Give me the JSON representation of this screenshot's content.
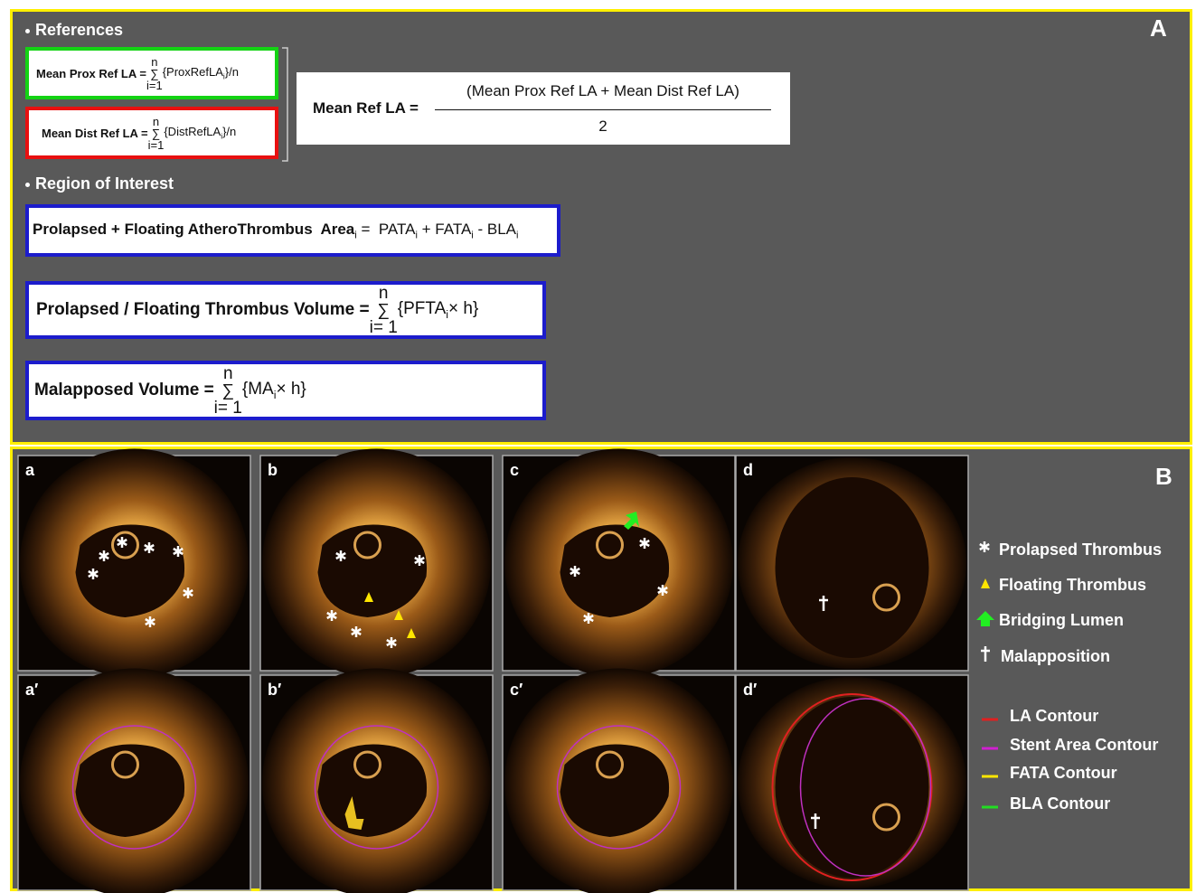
{
  "panel_a": {
    "label": "A",
    "references": {
      "heading": "References",
      "prox": {
        "lhs": "Mean Prox Ref LA =",
        "upper": "n",
        "sigma": "∑",
        "lower": "i=1",
        "body": [
          {
            "text": "{ProxRefLA",
            "sub": "i"
          },
          {
            "text": "}/n"
          }
        ]
      },
      "dist": {
        "lhs": "Mean Dist Ref LA =",
        "upper": "n",
        "sigma": "∑",
        "lower": "i=1",
        "body": [
          {
            "text": "{DistRefLA",
            "sub": "i"
          },
          {
            "text": "}/n"
          }
        ]
      },
      "mean": {
        "lhs": "Mean Ref LA =",
        "numerator": "(Mean Prox Ref LA + Mean Dist Ref LA)",
        "denominator": "2"
      }
    },
    "roi": {
      "heading": "Region of Interest",
      "area": [
        {
          "text": "Prolapsed + Floating AtheroThrombus  Area",
          "sub": "i"
        },
        {
          "text": " =  PATA",
          "sub": "i"
        },
        {
          "text": " + FATA",
          "sub": "i"
        },
        {
          "text": " - BLA",
          "sub": "i"
        }
      ],
      "volume": {
        "lhs": "Prolapsed / Floating Thrombus Volume =",
        "upper": "n",
        "sigma": "∑",
        "lower": "i= 1",
        "body": [
          {
            "text": "{PFTA",
            "sub": "i"
          },
          {
            "text": "× h}"
          }
        ]
      },
      "malapposed": {
        "lhs": "Malapposed Volume =",
        "upper": "n",
        "sigma": "∑",
        "lower": "i= 1",
        "body": [
          {
            "text": "{MA",
            "sub": "i"
          },
          {
            "text": "× h}"
          }
        ]
      }
    }
  },
  "panel_b": {
    "label": "B",
    "images": [
      {
        "label": "a"
      },
      {
        "label": "b"
      },
      {
        "label": "c"
      },
      {
        "label": "d"
      },
      {
        "label": "a′"
      },
      {
        "label": "b′"
      },
      {
        "label": "c′"
      },
      {
        "label": "d′"
      }
    ],
    "legend": [
      {
        "label": "Prolapsed Thrombus"
      },
      {
        "label": "Floating Thrombus"
      },
      {
        "label": "Bridging Lumen"
      },
      {
        "label": "Malapposition"
      },
      {
        "label": "LA Contour"
      },
      {
        "label": "Stent Area Contour"
      },
      {
        "label": "FATA Contour"
      },
      {
        "label": "BLA Contour"
      }
    ]
  }
}
